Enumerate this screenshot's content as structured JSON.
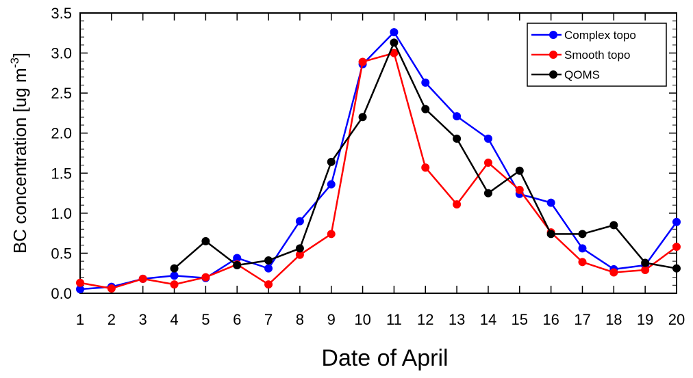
{
  "chart_data": {
    "type": "line",
    "xlabel": "Date of April",
    "ylabel": "BC concentration [ug m",
    "ylabel_sup": "-3",
    "ylabel_end": "]",
    "x": [
      1,
      2,
      3,
      4,
      5,
      6,
      7,
      8,
      9,
      10,
      11,
      12,
      13,
      14,
      15,
      16,
      17,
      18,
      19,
      20
    ],
    "xlim": [
      1,
      20
    ],
    "ylim": [
      0.0,
      3.5
    ],
    "xticks": [
      "1",
      "2",
      "3",
      "4",
      "5",
      "6",
      "7",
      "8",
      "9",
      "10",
      "11",
      "12",
      "13",
      "14",
      "15",
      "16",
      "17",
      "18",
      "19",
      "20"
    ],
    "yticks": [
      "0.0",
      "0.5",
      "1.0",
      "1.5",
      "2.0",
      "2.5",
      "3.0",
      "3.5"
    ],
    "ytick_values": [
      0.0,
      0.5,
      1.0,
      1.5,
      2.0,
      2.5,
      3.0,
      3.5
    ],
    "grid": false,
    "legend_position": "top-right",
    "series": [
      {
        "name": "Complex topo",
        "color": "#0000ff",
        "values": [
          0.05,
          0.08,
          0.18,
          0.22,
          0.19,
          0.44,
          0.31,
          0.9,
          1.36,
          2.86,
          3.26,
          2.63,
          2.21,
          1.93,
          1.24,
          1.13,
          0.56,
          0.3,
          0.35,
          0.89
        ]
      },
      {
        "name": "Smooth topo",
        "color": "#ff0000",
        "values": [
          0.13,
          0.06,
          0.18,
          0.11,
          0.2,
          0.36,
          0.11,
          0.48,
          0.74,
          2.89,
          3.0,
          1.57,
          1.11,
          1.63,
          1.29,
          0.76,
          0.39,
          0.26,
          0.29,
          0.58
        ]
      },
      {
        "name": "QOMS",
        "color": "#000000",
        "values": [
          null,
          null,
          null,
          0.31,
          0.65,
          0.35,
          0.41,
          0.56,
          1.64,
          2.2,
          3.13,
          2.3,
          1.93,
          1.25,
          1.53,
          0.74,
          0.74,
          0.85,
          0.38,
          0.31
        ]
      }
    ]
  }
}
